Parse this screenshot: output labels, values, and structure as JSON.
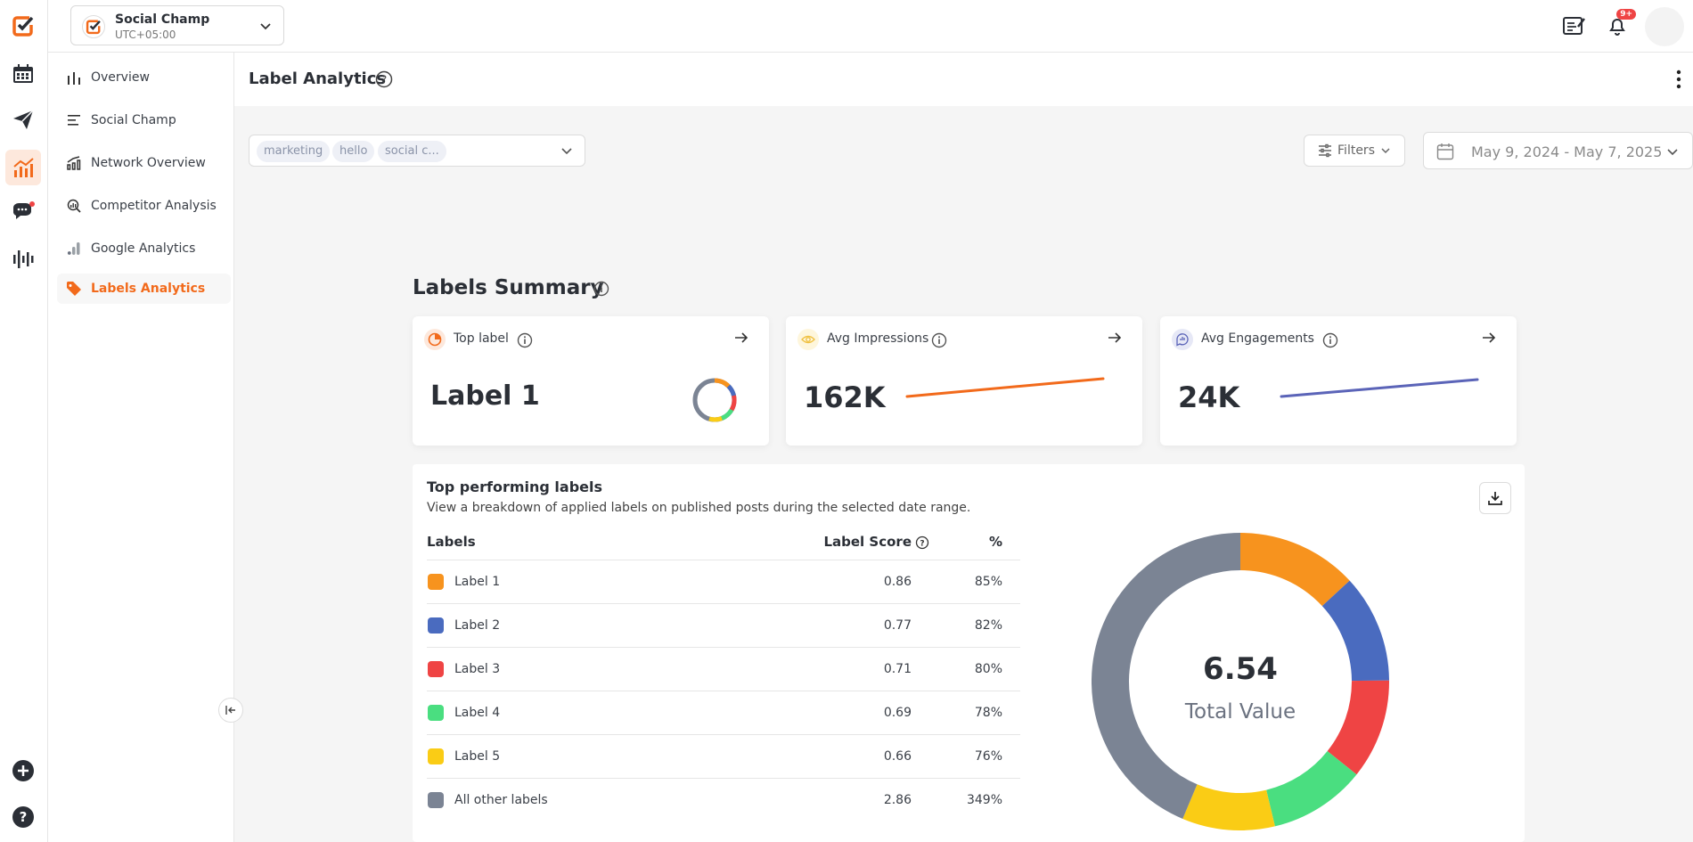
{
  "workspace": {
    "name": "Social Champ",
    "timezone": "UTC+05:00"
  },
  "notifications": {
    "badge": "9+"
  },
  "sidebar": {
    "items": [
      {
        "label": "Overview"
      },
      {
        "label": "Social Champ"
      },
      {
        "label": "Network Overview"
      },
      {
        "label": "Competitor Analysis"
      },
      {
        "label": "Google Analytics"
      },
      {
        "label": "Labels Analytics"
      }
    ]
  },
  "page": {
    "title": "Label Analytics"
  },
  "label_filter": {
    "chips": [
      "marketing",
      "hello",
      "social c..."
    ]
  },
  "filters": {
    "label": "Filters"
  },
  "date_range": {
    "text": "May 9, 2024 - May 7, 2025"
  },
  "summary": {
    "title": "Labels Summary",
    "cards": [
      {
        "label": "Top label",
        "value": "Label 1"
      },
      {
        "label": "Avg Impressions",
        "value": "162K"
      },
      {
        "label": "Avg Engagements",
        "value": "24K"
      }
    ]
  },
  "top_labels": {
    "title": "Top performing labels",
    "subtitle": "View a breakdown of applied labels on published posts during the selected date range.",
    "headers": {
      "labels": "Labels",
      "score": "Label Score",
      "percent": "%"
    },
    "rows": [
      {
        "name": "Label 1",
        "score": "0.86",
        "percent": "85%",
        "color": "#f7931e"
      },
      {
        "name": "Label 2",
        "score": "0.77",
        "percent": "82%",
        "color": "#4a6bbf"
      },
      {
        "name": "Label 3",
        "score": "0.71",
        "percent": "80%",
        "color": "#ef4444"
      },
      {
        "name": "Label 4",
        "score": "0.69",
        "percent": "78%",
        "color": "#4ade80"
      },
      {
        "name": "Label 5",
        "score": "0.66",
        "percent": "76%",
        "color": "#facc15"
      },
      {
        "name": "All other labels",
        "score": "2.86",
        "percent": "349%",
        "color": "#7b8494"
      }
    ],
    "total": {
      "value": "6.54",
      "label": "Total Value"
    }
  },
  "colors": {
    "accent": "#f26a1b",
    "impressions_line": "#f26a1b",
    "engagements_line": "#5b64b8"
  }
}
